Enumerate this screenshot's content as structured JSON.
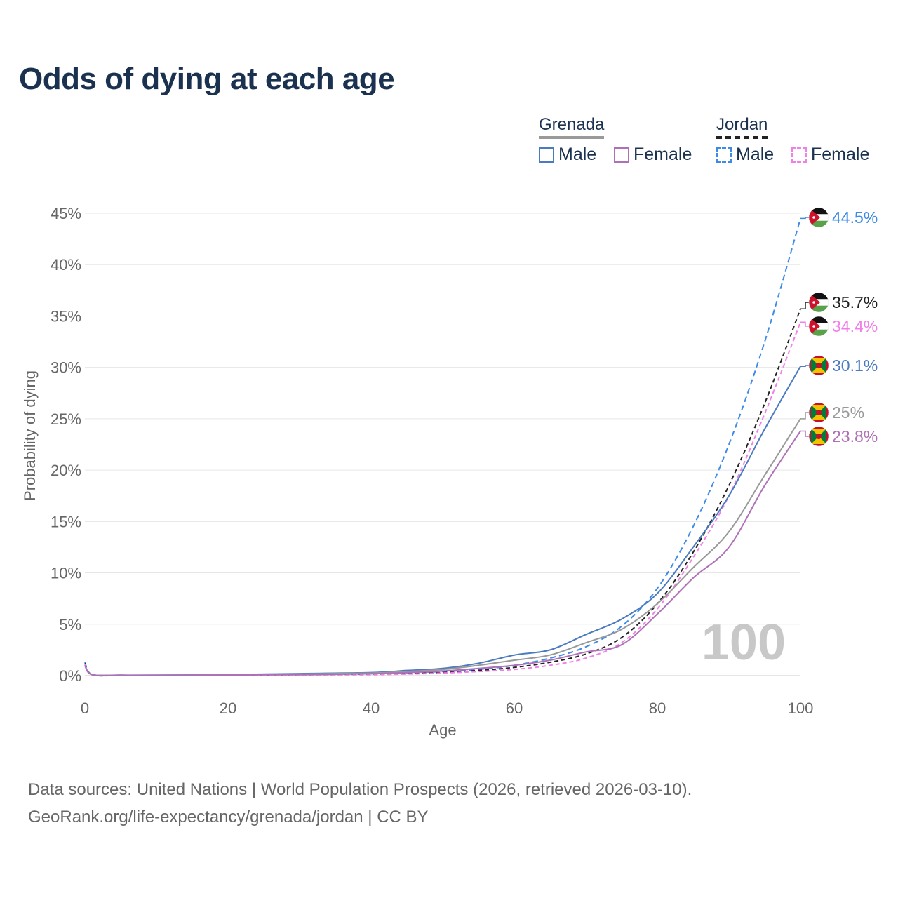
{
  "title": "Odds of dying at each age",
  "legend": {
    "groups": [
      {
        "name": "Grenada",
        "line_color": "#999999",
        "line_style": "solid",
        "items": [
          {
            "label": "Male",
            "color": "#4a7bc0",
            "style": "solid"
          },
          {
            "label": "Female",
            "color": "#b070b8",
            "style": "solid"
          }
        ]
      },
      {
        "name": "Jordan",
        "line_color": "#222222",
        "line_style": "dashed",
        "items": [
          {
            "label": "Male",
            "color": "#3d8ae8",
            "style": "dashed"
          },
          {
            "label": "Female",
            "color": "#f080e8",
            "style": "dashed"
          }
        ]
      }
    ]
  },
  "year_label": "100",
  "source": {
    "line1": "Data sources: United Nations | World Population Prospects (2026, retrieved 2026-03-10).",
    "line2": "GeoRank.org/life-expectancy/grenada/jordan | CC BY"
  },
  "chart_data": {
    "type": "line",
    "title": "Odds of dying at each age",
    "xlabel": "Age",
    "ylabel": "Probability of dying",
    "xlim": [
      0,
      100
    ],
    "ylim": [
      0,
      45
    ],
    "x_ticks": [
      0,
      20,
      40,
      60,
      80,
      100
    ],
    "y_ticks": [
      "0%",
      "5%",
      "10%",
      "15%",
      "20%",
      "25%",
      "30%",
      "35%",
      "40%",
      "45%"
    ],
    "y_tick_values": [
      0,
      5,
      10,
      15,
      20,
      25,
      30,
      35,
      40,
      45
    ],
    "grid": true,
    "x": [
      0,
      1,
      5,
      10,
      20,
      30,
      40,
      45,
      50,
      55,
      60,
      65,
      70,
      75,
      80,
      85,
      90,
      95,
      100
    ],
    "series": [
      {
        "name": "Jordan Male",
        "color": "#3d8ae8",
        "dash": "8,5",
        "end_label": "44.5%",
        "flag": "jordan",
        "values": [
          1.3,
          0.1,
          0.03,
          0.02,
          0.07,
          0.12,
          0.2,
          0.28,
          0.4,
          0.6,
          1.0,
          1.7,
          2.8,
          4.8,
          8.5,
          14.5,
          22.5,
          32.5,
          44.5
        ]
      },
      {
        "name": "Jordan Both",
        "color": "#222222",
        "dash": "6,4",
        "end_label": "35.7%",
        "flag": "jordan",
        "values": [
          1.2,
          0.1,
          0.03,
          0.02,
          0.05,
          0.09,
          0.15,
          0.2,
          0.3,
          0.5,
          0.8,
          1.3,
          2.1,
          3.7,
          7.0,
          12.0,
          18.5,
          26.5,
          35.7
        ]
      },
      {
        "name": "Jordan Female",
        "color": "#f080e8",
        "dash": "6,4",
        "end_label": "34.4%",
        "flag": "jordan",
        "values": [
          1.1,
          0.1,
          0.02,
          0.02,
          0.04,
          0.07,
          0.1,
          0.15,
          0.25,
          0.4,
          0.6,
          1.0,
          1.7,
          3.2,
          6.5,
          11.5,
          17.5,
          25.5,
          34.4
        ]
      },
      {
        "name": "Grenada Male",
        "color": "#4a7bc0",
        "dash": "",
        "end_label": "30.1%",
        "flag": "grenada",
        "values": [
          1.0,
          0.1,
          0.05,
          0.05,
          0.1,
          0.2,
          0.3,
          0.5,
          0.7,
          1.2,
          2.0,
          2.5,
          4.0,
          5.5,
          8.0,
          12.5,
          17.5,
          24.0,
          30.1
        ]
      },
      {
        "name": "Grenada Both",
        "color": "#999999",
        "dash": "",
        "end_label": "25%",
        "flag": "grenada",
        "values": [
          1.0,
          0.1,
          0.04,
          0.04,
          0.08,
          0.15,
          0.25,
          0.4,
          0.6,
          1.0,
          1.5,
          2.0,
          3.2,
          4.5,
          7.0,
          10.5,
          14.0,
          19.5,
          25.0
        ]
      },
      {
        "name": "Grenada Female",
        "color": "#b070b8",
        "dash": "",
        "end_label": "23.8%",
        "flag": "grenada",
        "values": [
          1.0,
          0.1,
          0.04,
          0.03,
          0.06,
          0.1,
          0.18,
          0.3,
          0.45,
          0.7,
          1.0,
          1.5,
          2.3,
          3.0,
          6.0,
          9.5,
          12.5,
          18.5,
          23.8
        ]
      }
    ]
  }
}
